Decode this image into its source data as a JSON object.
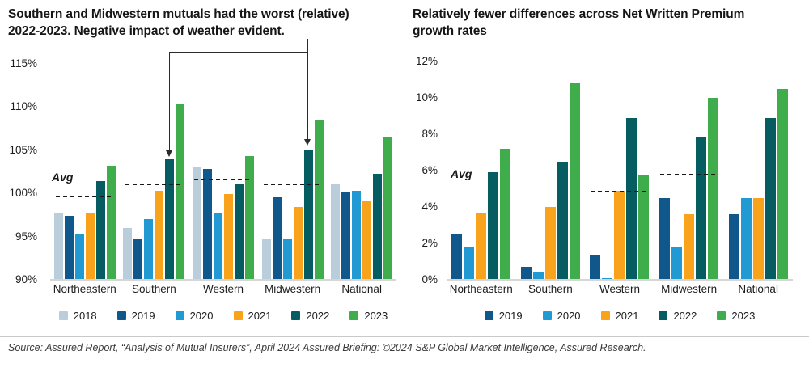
{
  "colors": {
    "2018": "#b9cdda",
    "2019": "#10578c",
    "2020": "#2199d2",
    "2021": "#f9a21b",
    "2022": "#065d61",
    "2023": "#3fad4c"
  },
  "source": "Source: Assured Report, “Analysis of Mutual Insurers”, April 2024 Assured Briefing: ©2024 S&P Global Market Intelligence, Assured Research.",
  "chart_data": [
    {
      "type": "bar",
      "title": "Southern and Midwestern mutuals had the worst (relative) 2022-2023. Negative impact of weather evident.",
      "categories": [
        "Northeastern",
        "Southern",
        "Western",
        "Midwestern",
        "National"
      ],
      "series": [
        {
          "name": "2018",
          "values": [
            97.8,
            96.0,
            103.1,
            94.7,
            101.0
          ]
        },
        {
          "name": "2019",
          "values": [
            97.4,
            94.7,
            102.8,
            99.5,
            100.2
          ]
        },
        {
          "name": "2020",
          "values": [
            95.2,
            97.0,
            97.7,
            94.8,
            100.3
          ]
        },
        {
          "name": "2021",
          "values": [
            97.7,
            100.3,
            99.9,
            98.4,
            99.2
          ]
        },
        {
          "name": "2022",
          "values": [
            101.4,
            103.9,
            101.1,
            105.0,
            102.3
          ]
        },
        {
          "name": "2023",
          "values": [
            103.2,
            110.3,
            104.3,
            108.5,
            106.5
          ]
        }
      ],
      "ylim": [
        90,
        115
      ],
      "yticks": [
        90,
        95,
        100,
        105,
        110,
        115
      ],
      "ytick_suffix": "%",
      "grid": false,
      "legend_position": "bottom",
      "avg_label": "Avg",
      "avg_lines": [
        {
          "category": "Northeastern",
          "value": 99.5
        },
        {
          "category": "Southern",
          "value": 100.9
        },
        {
          "category": "Western",
          "value": 101.5
        },
        {
          "category": "Midwestern",
          "value": 100.9
        }
      ],
      "annotations": [
        {
          "type": "arrow",
          "target": "Southern 2022 bar"
        },
        {
          "type": "arrow",
          "target": "Midwestern 2022 bar"
        }
      ]
    },
    {
      "type": "bar",
      "title": "Relatively fewer differences across Net Written Premium growth rates",
      "categories": [
        "Northeastern",
        "Southern",
        "Western",
        "Midwestern",
        "National"
      ],
      "series": [
        {
          "name": "2019",
          "values": [
            2.5,
            0.7,
            1.4,
            4.5,
            3.6
          ]
        },
        {
          "name": "2020",
          "values": [
            1.8,
            0.4,
            0.1,
            1.8,
            4.5
          ]
        },
        {
          "name": "2021",
          "values": [
            3.7,
            4.0,
            4.9,
            3.6,
            4.5
          ]
        },
        {
          "name": "2022",
          "values": [
            5.9,
            6.5,
            8.9,
            7.9,
            8.9
          ]
        },
        {
          "name": "2023",
          "values": [
            7.2,
            10.8,
            5.8,
            10.0,
            10.5
          ]
        }
      ],
      "ylim": [
        0,
        12
      ],
      "yticks": [
        0,
        2,
        4,
        6,
        8,
        10,
        12
      ],
      "ytick_suffix": "%",
      "grid": false,
      "legend_position": "bottom",
      "avg_label": "Avg",
      "avg_lines": [
        {
          "category": "Western",
          "value": 4.8
        },
        {
          "category": "Midwestern",
          "value": 5.75
        }
      ]
    }
  ]
}
